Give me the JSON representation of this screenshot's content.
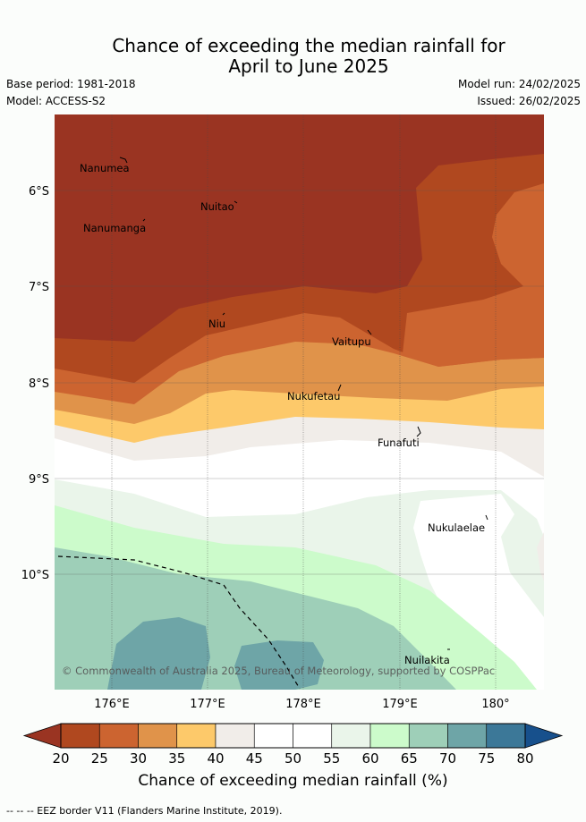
{
  "title_line1": "Chance of exceeding the median rainfall for",
  "title_line2": "April to June 2025",
  "meta": {
    "base_period": "Base period: 1981-2018",
    "model": "Model: ACCESS-S2",
    "model_run": "Model run: 24/02/2025",
    "issued": "Issued: 26/02/2025"
  },
  "map": {
    "lat_labels": [
      "6°S",
      "7°S",
      "8°S",
      "9°S",
      "10°S"
    ],
    "lon_labels": [
      "176°E",
      "177°E",
      "178°E",
      "179°E",
      "180°"
    ],
    "islands": [
      {
        "name": "Nanumea"
      },
      {
        "name": "Nuitao"
      },
      {
        "name": "Nanumanga"
      },
      {
        "name": "Niu"
      },
      {
        "name": "Vaitupu"
      },
      {
        "name": "Nukufetau"
      },
      {
        "name": "Funafuti"
      },
      {
        "name": "Nukulaelae"
      },
      {
        "name": "Nuilakita"
      }
    ],
    "copyright": "© Commonwealth of Australia 2025, Bureau of Meteorology, supported by COSPPac"
  },
  "colorbar": {
    "ticks": [
      "20",
      "25",
      "30",
      "35",
      "40",
      "45",
      "50",
      "55",
      "60",
      "65",
      "70",
      "75",
      "80"
    ],
    "colors": [
      "#b0481f",
      "#cc6430",
      "#e0934a",
      "#fdc96a",
      "#f1ede9",
      "#ffffff",
      "#ffffff",
      "#eaf5ea",
      "#ccfbcb",
      "#9ecfb8",
      "#6ea5a7",
      "#3c7898"
    ],
    "under_color": "#9a3422",
    "over_color": "#17508c",
    "label": "Chance of exceeding median rainfall (%)"
  },
  "footer": "--  --  -- EEZ border V11 (Flanders Marine Institute, 2019)."
}
